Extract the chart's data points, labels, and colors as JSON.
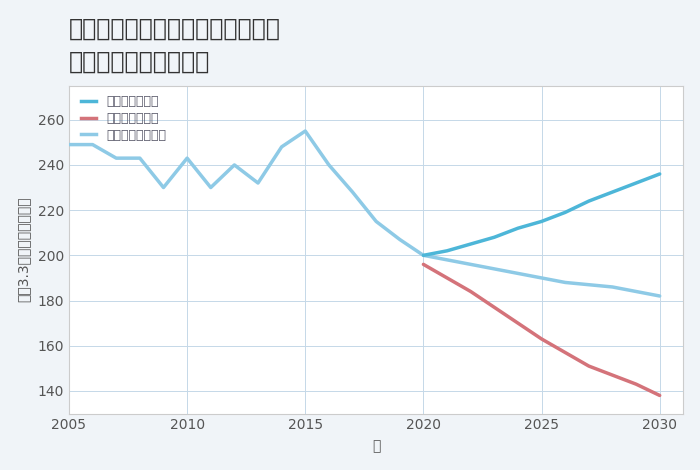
{
  "title_line1": "神奈川県横浜市都筑区牛久保西の",
  "title_line2": "中古戸建ての価格推移",
  "xlabel": "年",
  "ylabel": "坪（3.3㎡）単価（万円）",
  "background_color": "#f0f4f8",
  "plot_background": "#ffffff",
  "grid_color": "#c5d8e8",
  "ylim": [
    130,
    275
  ],
  "xlim": [
    2005,
    2031
  ],
  "yticks": [
    140,
    160,
    180,
    200,
    220,
    240,
    260
  ],
  "xticks": [
    2005,
    2010,
    2015,
    2020,
    2025,
    2030
  ],
  "normal_scenario": {
    "x": [
      2005,
      2006,
      2007,
      2008,
      2009,
      2010,
      2011,
      2012,
      2013,
      2014,
      2015,
      2016,
      2017,
      2018,
      2019,
      2020,
      2021,
      2022,
      2023,
      2024,
      2025,
      2026,
      2027,
      2028,
      2029,
      2030
    ],
    "y": [
      249,
      249,
      243,
      243,
      230,
      243,
      230,
      240,
      232,
      248,
      255,
      240,
      228,
      215,
      207,
      200,
      198,
      196,
      194,
      192,
      190,
      188,
      187,
      186,
      184,
      182
    ],
    "color": "#8ecae6",
    "label": "ノーマルシナリオ",
    "linewidth": 2.5
  },
  "good_scenario": {
    "x": [
      2020,
      2021,
      2022,
      2023,
      2024,
      2025,
      2026,
      2027,
      2028,
      2029,
      2030
    ],
    "y": [
      200,
      202,
      205,
      208,
      212,
      215,
      219,
      224,
      228,
      232,
      236
    ],
    "color": "#4db6d8",
    "label": "グッドシナリオ",
    "linewidth": 2.5
  },
  "bad_scenario": {
    "x": [
      2020,
      2021,
      2022,
      2023,
      2024,
      2025,
      2026,
      2027,
      2028,
      2029,
      2030
    ],
    "y": [
      196,
      190,
      184,
      177,
      170,
      163,
      157,
      151,
      147,
      143,
      138
    ],
    "color": "#d4737a",
    "label": "バッドシナリオ",
    "linewidth": 2.5
  },
  "title_fontsize": 17,
  "axis_label_fontsize": 10,
  "tick_fontsize": 10,
  "legend_fontsize": 9
}
